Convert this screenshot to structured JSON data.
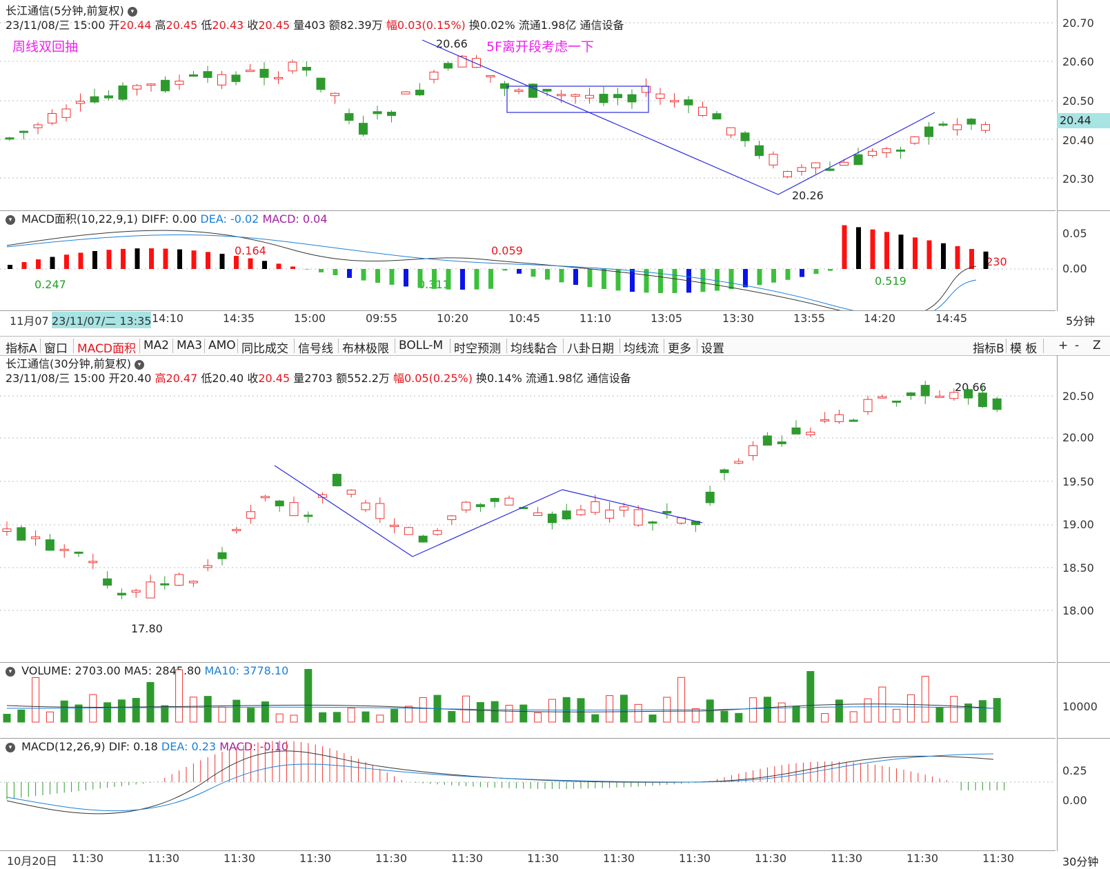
{
  "top": {
    "title": "长江通信(5分钟,前复权)",
    "info": {
      "date": "23/11/08/三 15:00",
      "open_label": "开",
      "open": "20.44",
      "high_label": "高",
      "high": "20.45",
      "low_label": "低",
      "low": "20.43",
      "close_label": "收",
      "close": "20.45",
      "vol_label": "量",
      "vol": "403",
      "amount_label": "额",
      "amount": "82.39万",
      "range_label": "幅",
      "range": "0.03(0.15%)",
      "turnover": "换0.02%",
      "float": "流通1.98亿",
      "industry": "通信设备"
    },
    "annotations": {
      "left": "周线双回抽",
      "middle": "5F离开段考虑一下"
    },
    "high_mark": "20.66",
    "low_mark": "20.26",
    "current_price": "20.44",
    "yaxis": [
      "20.70",
      "20.60",
      "20.50",
      "20.40",
      "20.30"
    ]
  },
  "macd_area": {
    "title": "MACD面积(10,22,9,1)",
    "diff": "DIFF: 0.00",
    "dea": "DEA: -0.02",
    "macd": "MACD: 0.04",
    "labels": [
      "0.247",
      "0.164",
      "0.311",
      "0.059",
      "0.519",
      ".230"
    ],
    "yaxis": [
      "0.05",
      "0.00"
    ]
  },
  "time_axis_top": {
    "labels": [
      "11月07",
      "23/11/07/二 13:35",
      "14:10",
      "14:35",
      "15:00",
      "09:55",
      "10:20",
      "10:45",
      "11:10",
      "13:05",
      "13:30",
      "13:55",
      "14:20",
      "14:45"
    ],
    "period": "5分钟"
  },
  "tabs": {
    "left": [
      "指标A",
      "窗口",
      "MACD面积",
      "MA2",
      "MA3",
      "AMO",
      "同比成交",
      "信号线",
      "布林极限",
      "BOLL-M",
      "时空预测",
      "均线黏合",
      "八卦日期",
      "均线流",
      "更多",
      "设置"
    ],
    "right": [
      "指标B",
      "模 板",
      "+",
      "-",
      "Z"
    ]
  },
  "bottom": {
    "title": "长江通信(30分钟,前复权)",
    "info": {
      "date": "23/11/08/三 15:00",
      "open_label": "开",
      "open": "20.40",
      "high_label": "高",
      "high": "20.47",
      "low_label": "低",
      "low": "20.40",
      "close_label": "收",
      "close": "20.45",
      "vol_label": "量",
      "vol": "2703",
      "amount_label": "额",
      "amount": "552.2万",
      "range_label": "幅",
      "range": "0.05(0.25%)",
      "turnover": "换0.14%",
      "float": "流通1.98亿",
      "industry": "通信设备"
    },
    "high_mark": "20.66",
    "low_mark": "17.80",
    "yaxis": [
      "20.50",
      "20.00",
      "19.50",
      "19.00",
      "18.50",
      "18.00"
    ]
  },
  "volume": {
    "title": "VOLUME: 2703.00",
    "ma5": "MA5: 2845.80",
    "ma10": "MA10: 3778.10",
    "yaxis": [
      "10000"
    ]
  },
  "macd": {
    "title": "MACD(12,26,9)",
    "dif": "DIF: 0.18",
    "dea": "DEA: 0.23",
    "macd": "MACD: -0.10",
    "yaxis": [
      "0.25",
      "0.00"
    ]
  },
  "time_axis_bottom": {
    "labels": [
      "10月20日",
      "11:30",
      "11:30",
      "11:30",
      "11:30",
      "11:30",
      "11:30",
      "11:30",
      "11:30",
      "11:30",
      "11:30",
      "11:30",
      "11:30",
      "11:30"
    ],
    "period": "30分钟"
  },
  "colors": {
    "up": "#f03030",
    "down": "#2e9a2e",
    "line_blue": "#1a7fd6",
    "arrow": "#2a2ae0"
  }
}
